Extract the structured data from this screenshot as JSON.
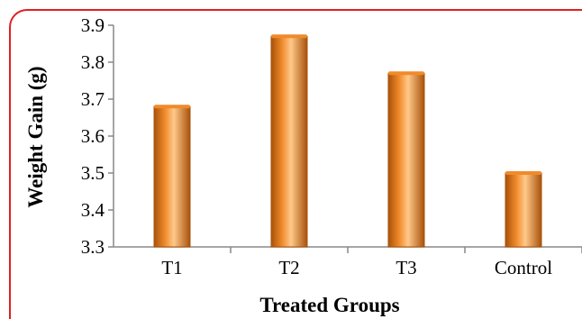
{
  "chart_data": {
    "type": "bar",
    "categories": [
      "T1",
      "T2",
      "T3",
      "Control"
    ],
    "values": [
      3.68,
      3.87,
      3.77,
      3.5
    ],
    "title": "",
    "xlabel": "Treated Groups",
    "ylabel": "Weight Gain (g)",
    "ylim": [
      3.3,
      3.9
    ],
    "yticks": [
      "3.3",
      "3.4",
      "3.5",
      "3.6",
      "3.7",
      "3.8",
      "3.9"
    ],
    "grid": false,
    "legend": "none",
    "colors": {
      "bar_dark": "#a8520a",
      "bar_mid": "#f08a2a",
      "bar_light": "#ffc98a",
      "frame": "#e02020",
      "axis": "#888888"
    }
  }
}
